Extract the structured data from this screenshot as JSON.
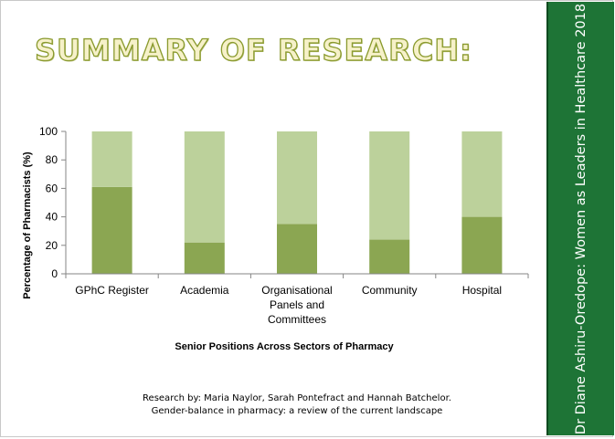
{
  "slide": {
    "title": "SUMMARY OF RESEARCH:",
    "sidebar_text": "Dr Diane Ashiru-Oredope: Women as Leaders in Healthcare 2018",
    "citation_line1": "Research by: Maria Naylor, Sarah Pontefract and Hannah Batchelor.",
    "citation_line2": "Gender-balance in pharmacy: a review of the current landscape"
  },
  "colors": {
    "bar_lower": "#8ba652",
    "bar_upper": "#bcd19b",
    "sidebar": "#1e7436",
    "title_stroke": "#8a9a2e"
  },
  "chart_data": {
    "type": "bar",
    "stacked": true,
    "categories": [
      [
        "GPhC Register"
      ],
      [
        "Academia"
      ],
      [
        "Organisational",
        "Panels and",
        "Committees"
      ],
      [
        "Community"
      ],
      [
        "Hospital"
      ]
    ],
    "series": [
      {
        "values": [
          61,
          22,
          35,
          24,
          40
        ]
      },
      {
        "values": [
          39,
          78,
          65,
          76,
          60
        ]
      }
    ],
    "xlabel": "Senior Positions Across Sectors of Pharmacy",
    "ylabel": "Percentage of Pharmacists (%)",
    "ylim": [
      0,
      100
    ],
    "yticks": [
      0,
      20,
      40,
      60,
      80,
      100
    ],
    "grid": false,
    "legend": "none"
  }
}
